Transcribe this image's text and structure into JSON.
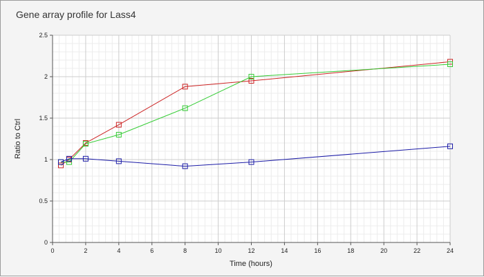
{
  "chart_data": {
    "type": "line",
    "title": "Gene array profile for Lass4",
    "xlabel": "Time (hours)",
    "ylabel": "Ratio to Ctrl",
    "xlim": [
      0,
      24
    ],
    "ylim": [
      0,
      2.5
    ],
    "xticks": [
      0,
      2,
      4,
      6,
      8,
      10,
      12,
      14,
      16,
      18,
      20,
      22,
      24
    ],
    "yticks": [
      0,
      0.5,
      1,
      1.5,
      2,
      2.5
    ],
    "xtick_labels": [
      "0",
      "2",
      "4",
      "6",
      "8",
      "10",
      "12",
      "14",
      "16",
      "18",
      "20",
      "22",
      "24"
    ],
    "ytick_labels": [
      "0",
      "0.5",
      "1",
      "1.5",
      "2",
      "2.5"
    ],
    "grid": true,
    "minor_grid": true,
    "marker": "open-square",
    "series": [
      {
        "color": "#cc2222",
        "x": [
          0.5,
          1,
          2,
          4,
          8,
          12,
          24
        ],
        "y": [
          0.93,
          1.0,
          1.2,
          1.42,
          1.88,
          1.95,
          2.18
        ]
      },
      {
        "color": "#33cc33",
        "x": [
          0.5,
          1,
          2,
          4,
          8,
          12,
          24
        ],
        "y": [
          0.97,
          0.97,
          1.19,
          1.3,
          1.62,
          2.0,
          2.15
        ]
      },
      {
        "color": "#1a1aa6",
        "x": [
          0.5,
          1,
          2,
          4,
          8,
          12,
          24
        ],
        "y": [
          0.97,
          1.01,
          1.01,
          0.98,
          0.92,
          0.97,
          1.16
        ]
      }
    ]
  }
}
